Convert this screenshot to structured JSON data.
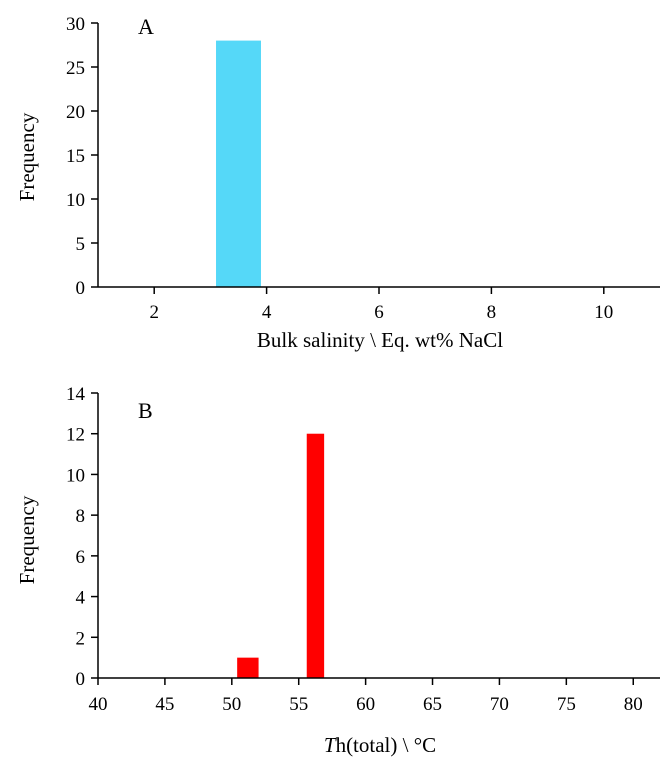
{
  "chart_data": [
    {
      "type": "bar",
      "panel": "A",
      "xlabel": "Bulk salinity \\ Eq. wt% NaCl",
      "ylabel": "Frequency",
      "xlim": [
        1,
        11
      ],
      "ylim": [
        0,
        30
      ],
      "xticks": [
        2,
        4,
        6,
        8,
        10
      ],
      "xtick_labels": [
        "2",
        "4",
        "6",
        "8",
        "10"
      ],
      "yticks": [
        0,
        5,
        10,
        15,
        20,
        25,
        30
      ],
      "ytick_labels": [
        "0",
        "5",
        "10",
        "15",
        "20",
        "25",
        "30"
      ],
      "bars": [
        {
          "x0": 3.1,
          "x1": 3.9,
          "value": 28
        }
      ],
      "color": "#55d8f8",
      "grid": false
    },
    {
      "type": "bar",
      "panel": "B",
      "xlabel_italic": "T",
      "xlabel_rest": "h(total) \\ °C",
      "ylabel": "Frequency",
      "xlim": [
        40,
        82
      ],
      "ylim": [
        0,
        14
      ],
      "xticks": [
        40,
        45,
        50,
        55,
        60,
        65,
        70,
        75,
        80
      ],
      "xtick_labels": [
        "40",
        "45",
        "50",
        "55",
        "60",
        "65",
        "70",
        "75",
        "80"
      ],
      "yticks": [
        0,
        2,
        4,
        6,
        8,
        10,
        12,
        14
      ],
      "ytick_labels": [
        "0",
        "2",
        "4",
        "6",
        "8",
        "10",
        "12",
        "14"
      ],
      "bars": [
        {
          "x0": 50.4,
          "x1": 52.0,
          "value": 1
        },
        {
          "x0": 55.6,
          "x1": 56.9,
          "value": 12
        }
      ],
      "color": "#ff0000",
      "grid": false
    }
  ]
}
